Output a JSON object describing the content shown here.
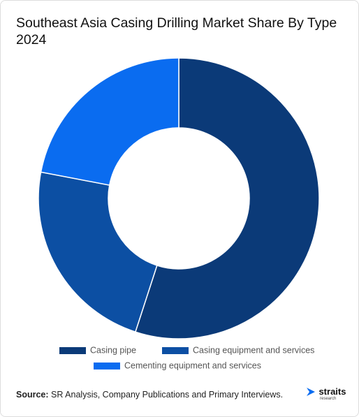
{
  "chart_data": {
    "type": "donut",
    "title": "Southeast Asia Casing Drilling Market Share By Type 2024",
    "categories": [
      "Casing pipe",
      "Casing equipment and services",
      "Cementing equipment and services"
    ],
    "values": [
      55,
      23,
      22
    ],
    "colors": [
      "#0b3a78",
      "#0c4fa3",
      "#0a6cf0"
    ]
  },
  "source": {
    "label": "Source:",
    "text": "SR Analysis, Company Publications and Primary Interviews."
  },
  "logo": {
    "name": "straits",
    "tagline": "research"
  }
}
